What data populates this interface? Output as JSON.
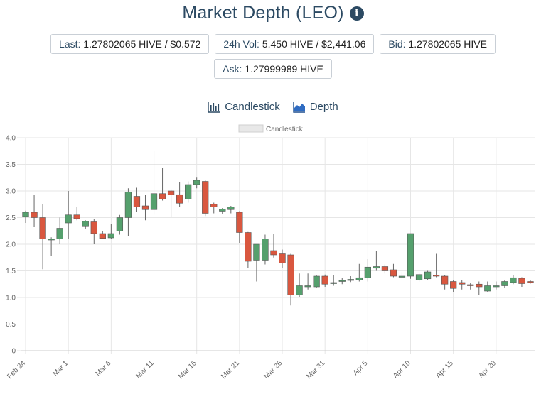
{
  "header": {
    "title": "Market Depth (LEO)",
    "info_icon": "info-icon"
  },
  "stats": {
    "last_label": "Last:",
    "last_value": "1.27802065 HIVE / $0.572",
    "vol_label": "24h Vol:",
    "vol_value": "5,450 HIVE / $2,441.06",
    "bid_label": "Bid:",
    "bid_value": "1.27802065 HIVE",
    "ask_label": "Ask:",
    "ask_value": "1.27999989 HIVE"
  },
  "toggles": {
    "candlestick_label": "Candlestick",
    "depth_label": "Depth"
  },
  "colors": {
    "up": "#55a06d",
    "down": "#d9573f",
    "grid": "#e6e6e6",
    "text": "#2c4a63"
  },
  "chart_data": {
    "type": "candlestick",
    "legend": [
      "Candlestick"
    ],
    "legend_position": "top-center",
    "grid": true,
    "ylim": [
      0,
      4.0
    ],
    "yticks": [
      "0",
      "0.5",
      "1.0",
      "1.5",
      "2.0",
      "2.5",
      "3.0",
      "3.5",
      "4.0"
    ],
    "xtick_labels": [
      "Feb 24",
      "Mar 1",
      "Mar 6",
      "Mar 11",
      "Mar 16",
      "Mar 21",
      "Mar 26",
      "Mar 31",
      "Apr 5",
      "Apr 10",
      "Apr 15",
      "Apr 20"
    ],
    "xtick_indices": [
      0,
      5,
      10,
      15,
      20,
      25,
      30,
      35,
      40,
      45,
      50,
      55
    ],
    "candles": [
      {
        "date": "Feb 24",
        "open": 2.52,
        "high": 2.63,
        "low": 2.4,
        "close": 2.6
      },
      {
        "date": "Feb 25",
        "open": 2.6,
        "high": 2.93,
        "low": 2.32,
        "close": 2.5
      },
      {
        "date": "Feb 26",
        "open": 2.5,
        "high": 2.75,
        "low": 1.53,
        "close": 2.1
      },
      {
        "date": "Feb 27",
        "open": 2.08,
        "high": 2.13,
        "low": 1.78,
        "close": 2.1
      },
      {
        "date": "Feb 28",
        "open": 2.1,
        "high": 2.5,
        "low": 2.0,
        "close": 2.3
      },
      {
        "date": "Mar 1",
        "open": 2.4,
        "high": 3.0,
        "low": 2.1,
        "close": 2.55
      },
      {
        "date": "Mar 2",
        "open": 2.55,
        "high": 2.7,
        "low": 2.45,
        "close": 2.48
      },
      {
        "date": "Mar 3",
        "open": 2.33,
        "high": 2.45,
        "low": 2.28,
        "close": 2.43
      },
      {
        "date": "Mar 4",
        "open": 2.42,
        "high": 2.47,
        "low": 2.0,
        "close": 2.2
      },
      {
        "date": "Mar 5",
        "open": 2.2,
        "high": 2.25,
        "low": 2.1,
        "close": 2.11
      },
      {
        "date": "Mar 6",
        "open": 2.12,
        "high": 2.38,
        "low": 2.1,
        "close": 2.2
      },
      {
        "date": "Mar 7",
        "open": 2.25,
        "high": 2.55,
        "low": 2.18,
        "close": 2.5
      },
      {
        "date": "Mar 8",
        "open": 2.5,
        "high": 3.05,
        "low": 2.15,
        "close": 2.98
      },
      {
        "date": "Mar 9",
        "open": 2.9,
        "high": 3.06,
        "low": 2.6,
        "close": 2.7
      },
      {
        "date": "Mar 10",
        "open": 2.72,
        "high": 2.92,
        "low": 2.45,
        "close": 2.65
      },
      {
        "date": "Mar 11",
        "open": 2.65,
        "high": 3.75,
        "low": 2.55,
        "close": 2.95
      },
      {
        "date": "Mar 12",
        "open": 2.95,
        "high": 3.43,
        "low": 2.82,
        "close": 2.85
      },
      {
        "date": "Mar 13",
        "open": 3.0,
        "high": 3.03,
        "low": 2.52,
        "close": 2.93
      },
      {
        "date": "Mar 14",
        "open": 2.93,
        "high": 3.16,
        "low": 2.7,
        "close": 2.77
      },
      {
        "date": "Mar 15",
        "open": 2.85,
        "high": 3.18,
        "low": 2.78,
        "close": 3.12
      },
      {
        "date": "Mar 16",
        "open": 3.12,
        "high": 3.25,
        "low": 3.05,
        "close": 3.2
      },
      {
        "date": "Mar 17",
        "open": 3.18,
        "high": 3.2,
        "low": 2.53,
        "close": 2.58
      },
      {
        "date": "Mar 18",
        "open": 2.75,
        "high": 2.78,
        "low": 2.58,
        "close": 2.7
      },
      {
        "date": "Mar 19",
        "open": 2.62,
        "high": 2.68,
        "low": 2.57,
        "close": 2.66
      },
      {
        "date": "Mar 20",
        "open": 2.65,
        "high": 2.72,
        "low": 2.58,
        "close": 2.7
      },
      {
        "date": "Mar 21",
        "open": 2.6,
        "high": 2.62,
        "low": 2.02,
        "close": 2.22
      },
      {
        "date": "Mar 22",
        "open": 2.22,
        "high": 2.23,
        "low": 1.55,
        "close": 1.68
      },
      {
        "date": "Mar 23",
        "open": 1.7,
        "high": 2.0,
        "low": 1.3,
        "close": 2.0
      },
      {
        "date": "Mar 24",
        "open": 1.7,
        "high": 2.18,
        "low": 1.62,
        "close": 2.1
      },
      {
        "date": "Mar 25",
        "open": 1.88,
        "high": 2.2,
        "low": 1.75,
        "close": 1.8
      },
      {
        "date": "Mar 26",
        "open": 1.82,
        "high": 1.9,
        "low": 1.55,
        "close": 1.65
      },
      {
        "date": "Mar 27",
        "open": 1.8,
        "high": 1.82,
        "low": 0.85,
        "close": 1.05
      },
      {
        "date": "Mar 28",
        "open": 1.05,
        "high": 1.45,
        "low": 1.0,
        "close": 1.22
      },
      {
        "date": "Mar 29",
        "open": 1.2,
        "high": 1.45,
        "low": 1.15,
        "close": 1.22
      },
      {
        "date": "Mar 30",
        "open": 1.2,
        "high": 1.42,
        "low": 1.18,
        "close": 1.4
      },
      {
        "date": "Mar 31",
        "open": 1.4,
        "high": 1.43,
        "low": 1.2,
        "close": 1.25
      },
      {
        "date": "Apr 1",
        "open": 1.27,
        "high": 1.42,
        "low": 1.22,
        "close": 1.28
      },
      {
        "date": "Apr 2",
        "open": 1.3,
        "high": 1.36,
        "low": 1.25,
        "close": 1.32
      },
      {
        "date": "Apr 3",
        "open": 1.33,
        "high": 1.4,
        "low": 1.29,
        "close": 1.34
      },
      {
        "date": "Apr 4",
        "open": 1.33,
        "high": 1.63,
        "low": 1.3,
        "close": 1.37
      },
      {
        "date": "Apr 5",
        "open": 1.37,
        "high": 1.72,
        "low": 1.3,
        "close": 1.57
      },
      {
        "date": "Apr 6",
        "open": 1.55,
        "high": 1.88,
        "low": 1.5,
        "close": 1.58
      },
      {
        "date": "Apr 7",
        "open": 1.58,
        "high": 1.62,
        "low": 1.45,
        "close": 1.5
      },
      {
        "date": "Apr 8",
        "open": 1.52,
        "high": 1.63,
        "low": 1.38,
        "close": 1.4
      },
      {
        "date": "Apr 9",
        "open": 1.4,
        "high": 1.48,
        "low": 1.35,
        "close": 1.4
      },
      {
        "date": "Apr 10",
        "open": 1.4,
        "high": 2.2,
        "low": 1.35,
        "close": 2.2
      },
      {
        "date": "Apr 11",
        "open": 1.33,
        "high": 1.45,
        "low": 1.3,
        "close": 1.43
      },
      {
        "date": "Apr 12",
        "open": 1.35,
        "high": 1.5,
        "low": 1.32,
        "close": 1.48
      },
      {
        "date": "Apr 13",
        "open": 1.42,
        "high": 1.82,
        "low": 1.38,
        "close": 1.4
      },
      {
        "date": "Apr 14",
        "open": 1.4,
        "high": 1.42,
        "low": 1.15,
        "close": 1.25
      },
      {
        "date": "Apr 15",
        "open": 1.3,
        "high": 1.32,
        "low": 1.1,
        "close": 1.17
      },
      {
        "date": "Apr 16",
        "open": 1.28,
        "high": 1.32,
        "low": 1.15,
        "close": 1.25
      },
      {
        "date": "Apr 17",
        "open": 1.24,
        "high": 1.28,
        "low": 1.15,
        "close": 1.23
      },
      {
        "date": "Apr 18",
        "open": 1.25,
        "high": 1.3,
        "low": 1.05,
        "close": 1.2
      },
      {
        "date": "Apr 19",
        "open": 1.12,
        "high": 1.3,
        "low": 1.1,
        "close": 1.22
      },
      {
        "date": "Apr 20",
        "open": 1.2,
        "high": 1.3,
        "low": 1.15,
        "close": 1.22
      },
      {
        "date": "Apr 21",
        "open": 1.22,
        "high": 1.33,
        "low": 1.18,
        "close": 1.3
      },
      {
        "date": "Apr 22",
        "open": 1.28,
        "high": 1.42,
        "low": 1.25,
        "close": 1.37
      },
      {
        "date": "Apr 23",
        "open": 1.36,
        "high": 1.38,
        "low": 1.2,
        "close": 1.26
      },
      {
        "date": "Apr 24",
        "open": 1.3,
        "high": 1.32,
        "low": 1.26,
        "close": 1.28
      }
    ]
  }
}
